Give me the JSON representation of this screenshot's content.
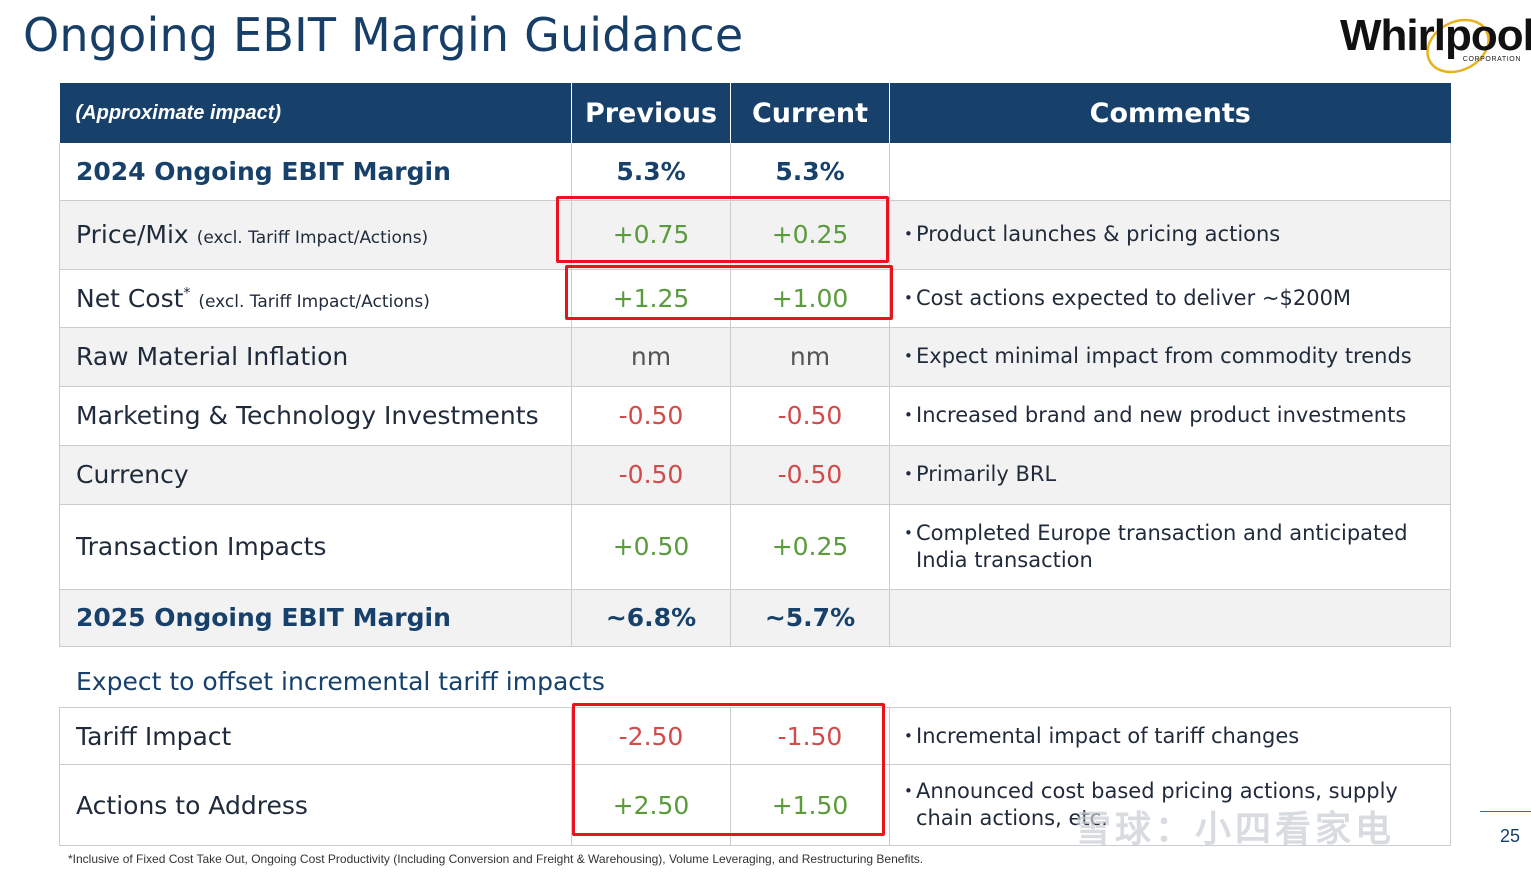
{
  "title": "Ongoing EBIT Margin Guidance",
  "logo": {
    "word": "Whirlpool",
    "sub": "CORPORATION"
  },
  "header": {
    "label": "(Approximate impact)",
    "previous": "Previous",
    "current": "Current",
    "comments": "Comments"
  },
  "rows": [
    {
      "label": "2024 Ongoing EBIT Margin",
      "note": "",
      "sup": "",
      "previous": "5.3%",
      "current": "5.3%",
      "comment": ""
    },
    {
      "label": "Price/Mix",
      "note": "(excl. Tariff Impact/Actions)",
      "sup": "",
      "previous": "+0.75",
      "current": "+0.25",
      "comment": "Product launches & pricing actions"
    },
    {
      "label": "Net Cost",
      "note": "(excl. Tariff Impact/Actions)",
      "sup": "*",
      "previous": "+1.25",
      "current": "+1.00",
      "comment": "Cost actions expected to deliver ~$200M"
    },
    {
      "label": "Raw Material Inflation",
      "note": "",
      "sup": "",
      "previous": "nm",
      "current": "nm",
      "comment": "Expect minimal impact from commodity trends"
    },
    {
      "label": "Marketing & Technology Investments",
      "note": "",
      "sup": "",
      "previous": "-0.50",
      "current": "-0.50",
      "comment": "Increased brand and new product investments"
    },
    {
      "label": "Currency",
      "note": "",
      "sup": "",
      "previous": "-0.50",
      "current": "-0.50",
      "comment": "Primarily BRL"
    },
    {
      "label": "Transaction Impacts",
      "note": "",
      "sup": "",
      "previous": "+0.50",
      "current": "+0.25",
      "comment": "Completed Europe transaction and anticipated India transaction"
    },
    {
      "label": "2025 Ongoing EBIT Margin",
      "note": "",
      "sup": "",
      "previous": "~6.8%",
      "current": "~5.7%",
      "comment": ""
    }
  ],
  "section_title": "Expect to offset incremental tariff impacts",
  "tariff_rows": [
    {
      "label": "Tariff Impact",
      "previous": "-2.50",
      "current": "-1.50",
      "comment": "Incremental impact of tariff changes"
    },
    {
      "label": "Actions to Address",
      "previous": "+2.50",
      "current": "+1.50",
      "comment": "Announced cost based pricing actions, supply chain actions, etc."
    }
  ],
  "footnote": "*Inclusive of Fixed Cost Take Out, Ongoing Cost Productivity (Including Conversion and Freight & Warehousing), Volume Leveraging, and Restructuring Benefits.",
  "page_number": "25",
  "watermark": "雪球：小四看家电",
  "colors": {
    "header_bg": "#17416b",
    "positive": "#5a9b3c",
    "negative": "#d24b4b",
    "highlight": "#e8131b",
    "alt_row": "#f2f2f2"
  },
  "icons": {
    "bullet": "bullet-icon"
  }
}
